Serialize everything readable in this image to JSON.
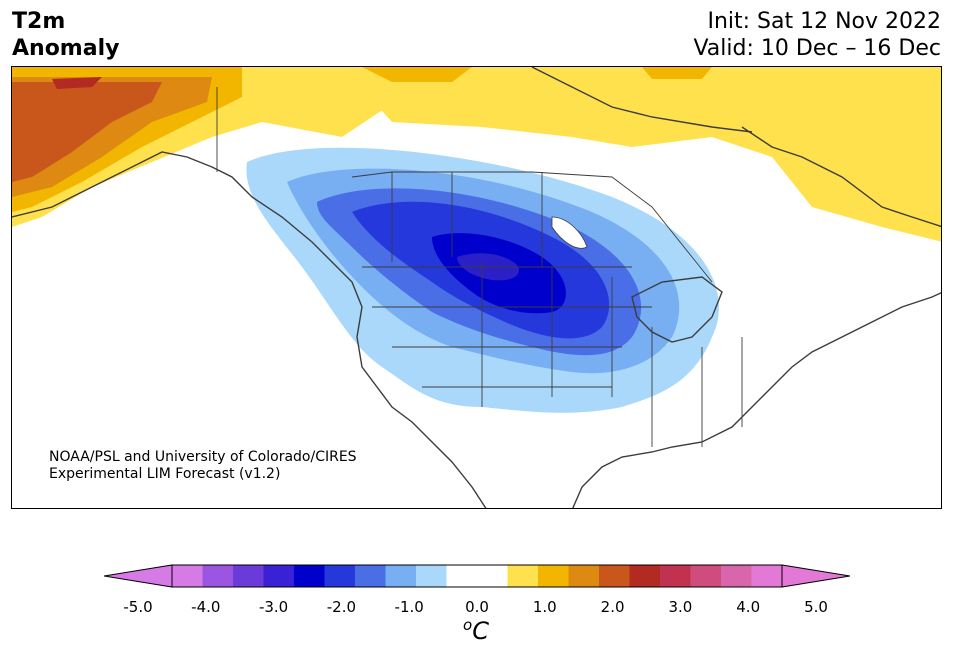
{
  "title": {
    "left_line1": "T2m",
    "left_line2": "Anomaly",
    "init": "Init: Sat 12 Nov 2022",
    "valid": "Valid: 10 Dec – 16 Dec"
  },
  "credit": {
    "line1": "NOAA/PSL and University of Colorado/CIRES",
    "line2": "Experimental LIM Forecast (v1.2)"
  },
  "colorbar": {
    "ticks": [
      "-5.0",
      "-4.0",
      "-3.0",
      "-2.0",
      "-1.0",
      "0.0",
      "1.0",
      "2.0",
      "3.0",
      "4.0",
      "5.0"
    ],
    "unit_sup": "o",
    "unit_main": "C",
    "colors": [
      "#d67ae6",
      "#9c55e0",
      "#6a3bd9",
      "#3a21d6",
      "#0000cd",
      "#2438dc",
      "#4a6ee6",
      "#78aef2",
      "#a9d8fb",
      "#ffffff",
      "#ffffff",
      "#ffe14d",
      "#f2b600",
      "#de8a12",
      "#c9561a",
      "#b22a22",
      "#c23250",
      "#cf4c7c",
      "#d966aa",
      "#e279d6"
    ],
    "under_color": "#d67ae6",
    "over_color": "#e279d6"
  },
  "map": {
    "anomaly_colors": {
      "neg5": "#2b1fc8",
      "neg4": "#0000cd",
      "neg3": "#2438dc",
      "neg2": "#4a6ee6",
      "neg1": "#78aef2",
      "neg05": "#a9d8fb",
      "pos05": "#ffe14d",
      "pos1": "#f2b600",
      "pos15": "#de8a12",
      "pos2": "#c9561a",
      "pos25": "#b22a22"
    }
  }
}
